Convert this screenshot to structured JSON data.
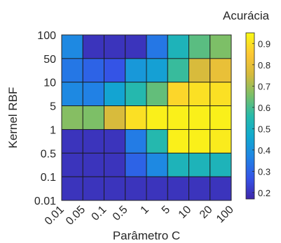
{
  "chart_data": {
    "type": "heatmap",
    "title": "",
    "xlabel": "Parâmetro C",
    "ylabel": "Kernel RBF",
    "x_ticks": [
      "0.01",
      "0.05",
      "0.1",
      "0.5",
      "1",
      "5",
      "10",
      "20",
      "100"
    ],
    "y_ticks": [
      "100",
      "50",
      "10",
      "5",
      "1",
      "0.5",
      "0.1",
      "0.01"
    ],
    "x_categories": [
      "0.01",
      "0.05",
      "0.1",
      "0.5",
      "1",
      "5",
      "10",
      "20"
    ],
    "y_categories": [
      "100",
      "50",
      "10",
      "5",
      "1",
      "0.5",
      "0.1"
    ],
    "colorbar": {
      "title": "Acurácia",
      "ticks": [
        "0.9",
        "0.8",
        "0.7",
        "0.6",
        "0.5",
        "0.4",
        "0.3",
        "0.2"
      ],
      "range": [
        0.17,
        0.95
      ]
    },
    "values": [
      [
        0.38,
        0.2,
        0.2,
        0.2,
        0.34,
        0.52,
        0.62,
        0.66
      ],
      [
        0.34,
        0.3,
        0.27,
        0.42,
        0.44,
        0.58,
        0.76,
        0.8
      ],
      [
        0.38,
        0.36,
        0.45,
        0.55,
        0.63,
        0.88,
        0.9,
        0.9
      ],
      [
        0.67,
        0.66,
        0.76,
        0.9,
        0.93,
        0.93,
        0.93,
        0.93
      ],
      [
        0.2,
        0.2,
        0.2,
        0.35,
        0.55,
        0.93,
        0.93,
        0.92
      ],
      [
        0.2,
        0.2,
        0.2,
        0.3,
        0.38,
        0.52,
        0.52,
        0.52
      ],
      [
        0.2,
        0.2,
        0.2,
        0.2,
        0.2,
        0.2,
        0.2,
        0.2
      ]
    ],
    "colormap": "parula",
    "grid": false,
    "legend": "colorbar-right"
  }
}
